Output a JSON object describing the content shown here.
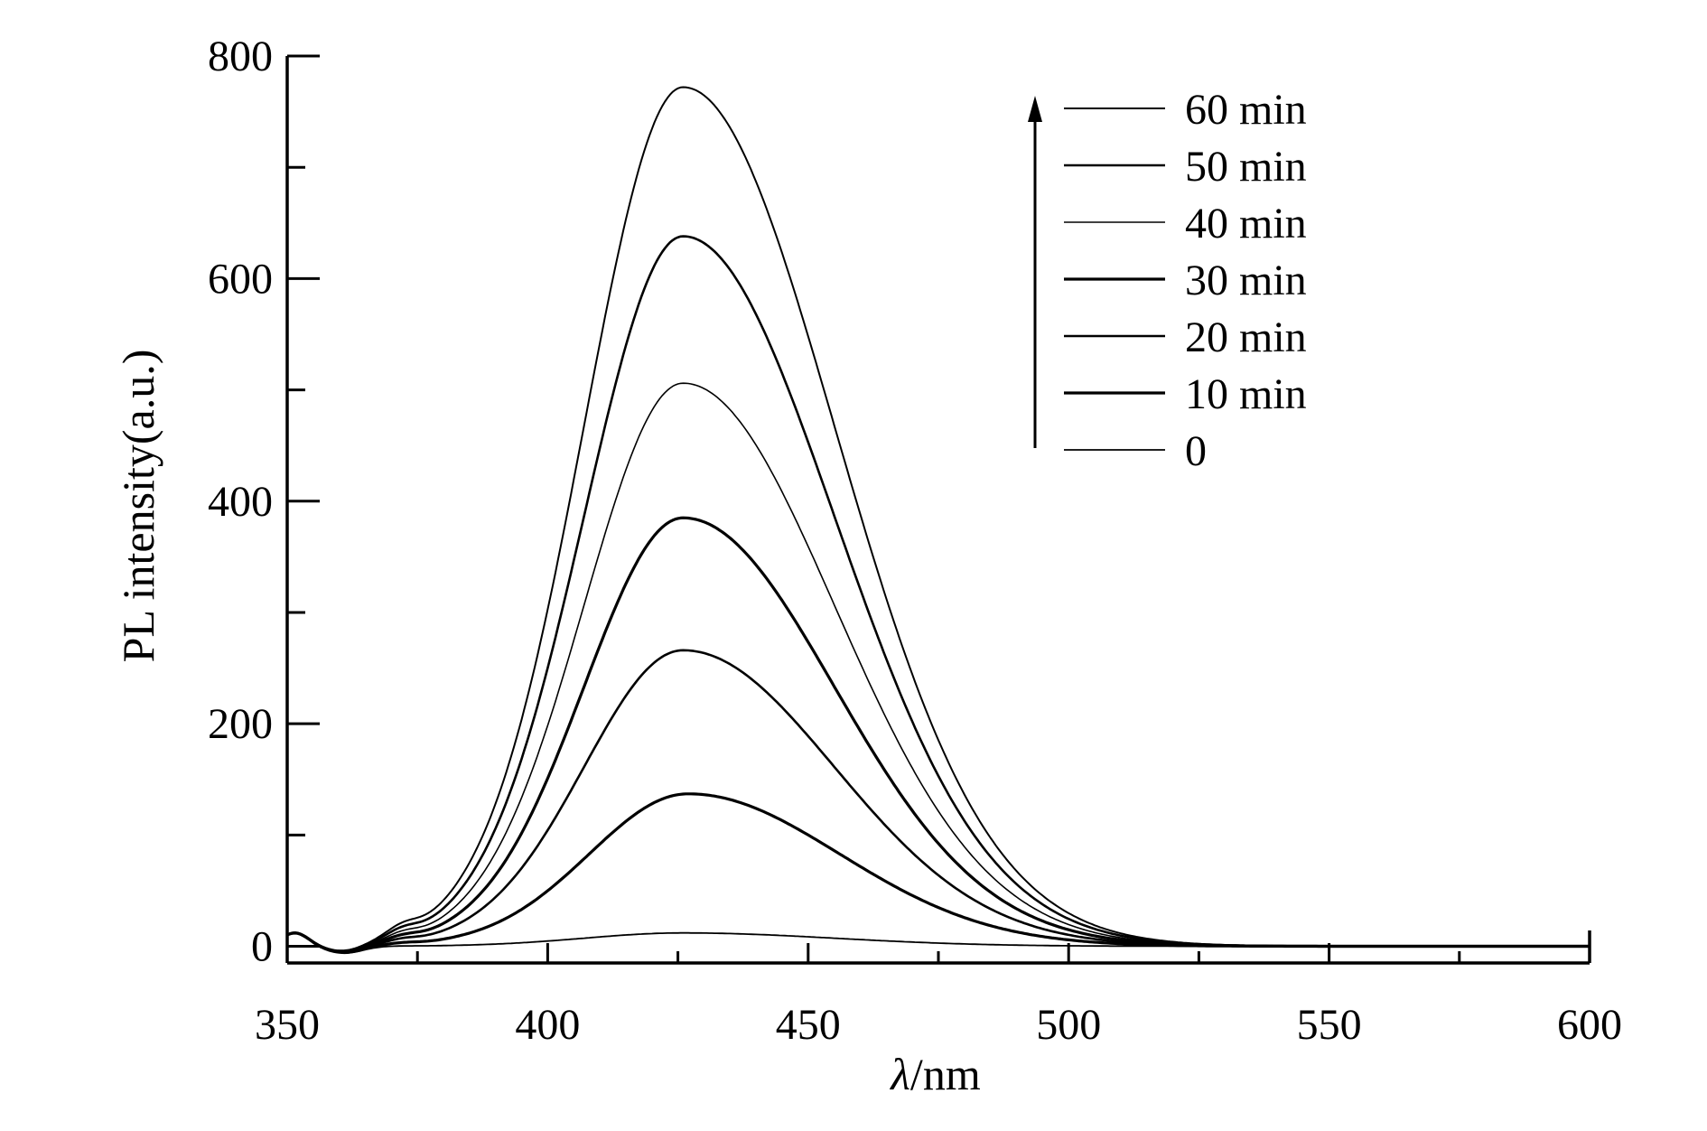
{
  "chart_data": {
    "type": "line",
    "title": "",
    "xlabel_symbol": "λ",
    "xlabel_unit": "/nm",
    "ylabel": "PL intensity(a.u.)",
    "xlim": [
      350,
      600
    ],
    "ylim": [
      -15,
      800
    ],
    "x_ticks": [
      350,
      400,
      450,
      500,
      550,
      600
    ],
    "x_tick_labels": [
      "350",
      "400",
      "450",
      "500",
      "550",
      "600"
    ],
    "y_ticks": [
      0,
      200,
      400,
      600,
      800
    ],
    "y_tick_labels": [
      "0",
      "200",
      "400",
      "600",
      "800"
    ],
    "grid": false,
    "legend_position": "top-right",
    "legend_arrow": "up",
    "colors": {
      "line": "#000000",
      "axis": "#000000",
      "background": "#ffffff"
    },
    "series": [
      {
        "name": "60 min",
        "peak_x": 426,
        "peak_y": 772
      },
      {
        "name": "50 min",
        "peak_x": 426,
        "peak_y": 638
      },
      {
        "name": "40 min",
        "peak_x": 426,
        "peak_y": 506
      },
      {
        "name": "30 min",
        "peak_x": 426,
        "peak_y": 385
      },
      {
        "name": "20 min",
        "peak_x": 426,
        "peak_y": 266
      },
      {
        "name": "10 min",
        "peak_x": 427,
        "peak_y": 137
      },
      {
        "name": "0",
        "peak_x": 426,
        "peak_y": 12
      }
    ]
  }
}
